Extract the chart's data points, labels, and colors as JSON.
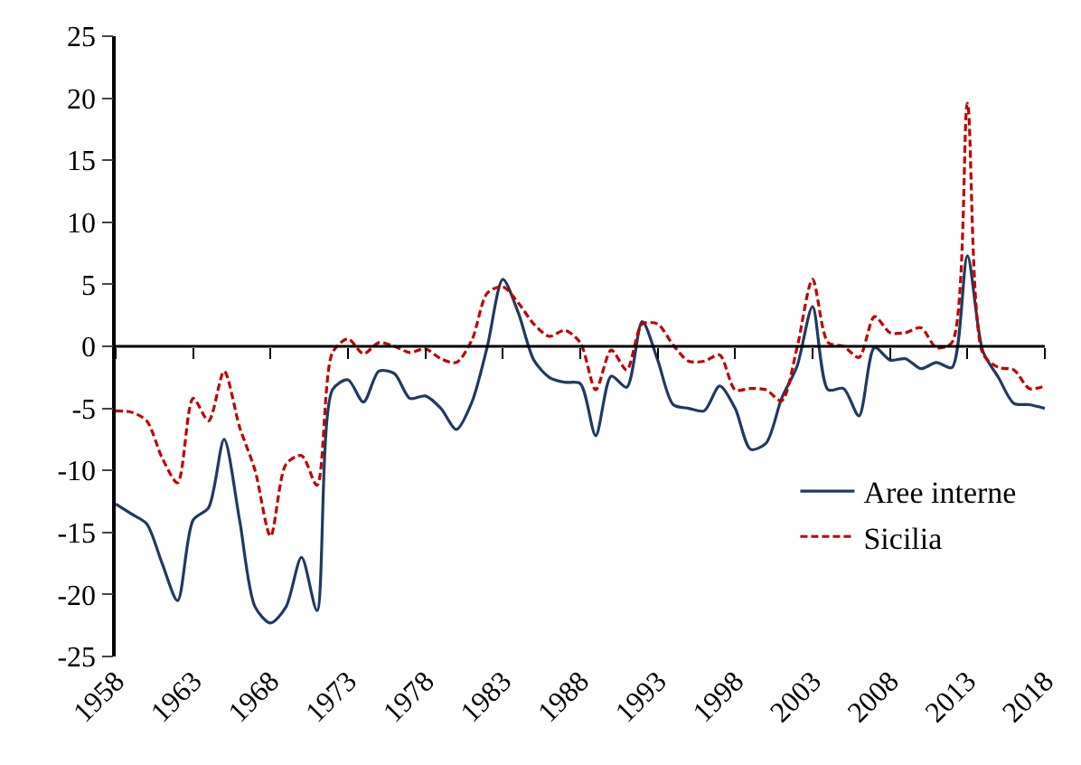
{
  "chart_data": {
    "type": "line",
    "x": [
      1958,
      1959,
      1960,
      1961,
      1962,
      1963,
      1964,
      1965,
      1966,
      1967,
      1968,
      1969,
      1970,
      1971,
      1972,
      1973,
      1974,
      1975,
      1976,
      1977,
      1978,
      1979,
      1980,
      1981,
      1982,
      1983,
      1984,
      1985,
      1986,
      1987,
      1988,
      1989,
      1990,
      1991,
      1992,
      1993,
      1994,
      1995,
      1996,
      1997,
      1998,
      1999,
      2000,
      2001,
      2002,
      2003,
      2004,
      2005,
      2006,
      2007,
      2008,
      2009,
      2010,
      2011,
      2012,
      2013,
      2014,
      2015,
      2016,
      2017,
      2018
    ],
    "series": [
      {
        "name": "Aree interne",
        "color": "#1f3a5f",
        "line_style": "solid",
        "values": [
          -12.7,
          -13.5,
          -14.3,
          -17.5,
          -20.5,
          -14,
          -13,
          -7.5,
          -14,
          -21,
          -22.3,
          -21,
          -17,
          -21.3,
          -3.5,
          -2.7,
          -4.5,
          -2,
          -2.2,
          -4.2,
          -4,
          -5,
          -6.7,
          -4.5,
          0,
          5.4,
          2.7,
          -1.1,
          -2.5,
          -2.9,
          -3,
          -7.2,
          -2.4,
          -3.3,
          2,
          -1.1,
          -4.7,
          -5,
          -5.2,
          -3.2,
          -5,
          -8.3,
          -7.8,
          -4.2,
          -1.6,
          3.2,
          -3.5,
          -3.4,
          -5.6,
          -0.1,
          -1.1,
          -1,
          -1.8,
          -1.3,
          -1.7,
          7.3,
          -0.4,
          -2.5,
          -4.6,
          -4.7,
          -5
        ]
      },
      {
        "name": "Sicilia",
        "color": "#c00000",
        "line_style": "dashed",
        "values": [
          -5.2,
          -5.3,
          -6,
          -9,
          -11,
          -4.2,
          -6,
          -2,
          -6.5,
          -10,
          -15.3,
          -9.5,
          -8.8,
          -11.2,
          -0.5,
          0.6,
          -0.6,
          0.3,
          0,
          -0.5,
          -0.2,
          -1,
          -1.3,
          0.5,
          4.3,
          4.8,
          3.5,
          1.8,
          0.8,
          1.3,
          0.3,
          -3.5,
          -0.3,
          -1.9,
          1.8,
          1.8,
          0.1,
          -1.2,
          -1.2,
          -0.7,
          -3.5,
          -3.4,
          -3.5,
          -4.4,
          -0.1,
          5.4,
          0.3,
          0,
          -0.9,
          2.4,
          1.1,
          1.1,
          1.5,
          -0.1,
          0.3,
          19.6,
          -0.6,
          -1.7,
          -1.9,
          -3.4,
          -3.2
        ]
      }
    ],
    "xlim": [
      1958,
      2018
    ],
    "xticks": [
      1958,
      1963,
      1968,
      1973,
      1978,
      1983,
      1988,
      1993,
      1998,
      2003,
      2008,
      2013,
      2018
    ],
    "ylim": [
      -25,
      25
    ],
    "yticks": [
      -25,
      -20,
      -15,
      -10,
      -5,
      0,
      5,
      10,
      15,
      20,
      25
    ],
    "ref_lines": [
      {
        "axis": "y",
        "value": 0,
        "color": "#000000"
      }
    ],
    "legend": "bottom right"
  }
}
